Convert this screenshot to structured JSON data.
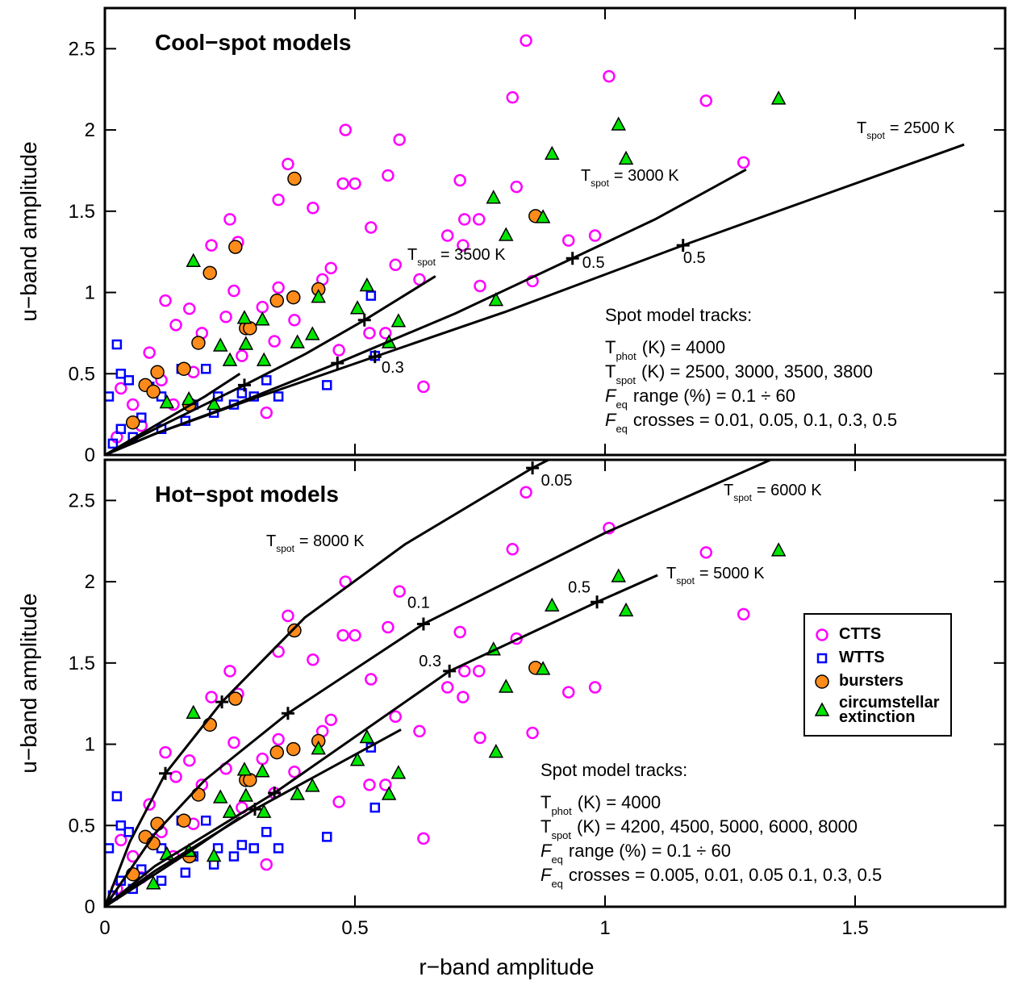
{
  "chart_data": [
    {
      "type": "scatter",
      "title": "Cool−spot models",
      "ylabel": "u−band amplitude",
      "xlim": [
        0,
        1.8
      ],
      "ylim": [
        0,
        2.75
      ],
      "xticks": [
        0,
        0.5,
        1,
        1.5
      ],
      "yticks": [
        0,
        0.5,
        1,
        1.5,
        2,
        2.5
      ],
      "show_xtick_labels": false,
      "series": [
        {
          "name": "CTTS",
          "color": "#ff00ff",
          "marker": "circle",
          "filled": false,
          "x": [
            0.842,
            1.008,
            0.815,
            1.202,
            1.277,
            0.481,
            0.589,
            0.366,
            0.476,
            0.5,
            0.566,
            0.71,
            0.823,
            0.347,
            0.416,
            0.719,
            0.748,
            0.685,
            0.716,
            0.532,
            0.25,
            0.266,
            0.213,
            0.927,
            0.98,
            0.75,
            0.855,
            0.581,
            0.629,
            0.121,
            0.169,
            0.258,
            0.315,
            0.347,
            0.379,
            0.435,
            0.452,
            0.142,
            0.194,
            0.274,
            0.339,
            0.242,
            0.529,
            0.561,
            0.468,
            0.637,
            0.089,
            0.032,
            0.056,
            0.113,
            0.323,
            0.177,
            0.137,
            0.073,
            0.024
          ],
          "y": [
            2.55,
            2.33,
            2.2,
            2.18,
            1.8,
            2.0,
            1.94,
            1.79,
            1.67,
            1.67,
            1.72,
            1.69,
            1.65,
            1.57,
            1.52,
            1.45,
            1.45,
            1.35,
            1.29,
            1.4,
            1.45,
            1.31,
            1.29,
            1.32,
            1.35,
            1.04,
            1.07,
            1.17,
            1.08,
            0.95,
            0.9,
            1.01,
            0.91,
            1.03,
            0.83,
            1.08,
            1.15,
            0.8,
            0.75,
            0.61,
            0.7,
            0.85,
            0.75,
            0.75,
            0.645,
            0.42,
            0.63,
            0.41,
            0.31,
            0.46,
            0.26,
            0.51,
            0.31,
            0.18,
            0.11
          ]
        },
        {
          "name": "WTTS",
          "color": "#0000ff",
          "marker": "square",
          "filled": false,
          "x": [
            0.532,
            0.54,
            0.444,
            0.024,
            0.032,
            0.008,
            0.048,
            0.089,
            0.153,
            0.202,
            0.113,
            0.177,
            0.226,
            0.274,
            0.323,
            0.347,
            0.218,
            0.073,
            0.032,
            0.113,
            0.258,
            0.298,
            0.016,
            0.056,
            0.161
          ],
          "y": [
            0.98,
            0.61,
            0.43,
            0.68,
            0.5,
            0.36,
            0.46,
            0.42,
            0.53,
            0.53,
            0.36,
            0.31,
            0.36,
            0.38,
            0.46,
            0.36,
            0.26,
            0.23,
            0.16,
            0.16,
            0.31,
            0.36,
            0.07,
            0.11,
            0.21
          ]
        },
        {
          "name": "bursters",
          "color": "#ff8c1a",
          "marker": "circle",
          "filled": true,
          "x": [
            0.379,
            0.861,
            0.261,
            0.21,
            0.282,
            0.29,
            0.344,
            0.377,
            0.427,
            0.187,
            0.105,
            0.158,
            0.081,
            0.097,
            0.056,
            0.169
          ],
          "y": [
            1.7,
            1.47,
            1.28,
            1.12,
            0.78,
            0.78,
            0.95,
            0.97,
            1.02,
            0.69,
            0.51,
            0.53,
            0.43,
            0.39,
            0.2,
            0.31
          ]
        },
        {
          "name": "circumstellar extinction",
          "color": "#00e600",
          "marker": "triangle",
          "filled": true,
          "x": [
            1.347,
            1.027,
            1.042,
            0.894,
            0.777,
            0.876,
            0.802,
            0.782,
            0.524,
            0.505,
            0.587,
            0.568,
            0.427,
            0.415,
            0.385,
            0.315,
            0.279,
            0.282,
            0.318,
            0.177,
            0.231,
            0.25,
            0.168,
            0.124,
            0.218
          ],
          "y": [
            2.19,
            2.03,
            1.82,
            1.85,
            1.58,
            1.46,
            1.35,
            0.95,
            1.04,
            0.9,
            0.82,
            0.69,
            0.97,
            0.74,
            0.69,
            0.83,
            0.84,
            0.68,
            0.58,
            1.19,
            0.67,
            0.58,
            0.34,
            0.32,
            0.31
          ]
        }
      ],
      "tracks": [
        {
          "label": {
            "main": "T",
            "sub": "spot",
            "rest": "= 2500 K"
          },
          "x": [
            0,
            0.1,
            0.3,
            0.54,
            0.8,
            1.156,
            1.4,
            1.718
          ],
          "y": [
            0,
            0.13,
            0.35,
            0.605,
            0.88,
            1.29,
            1.56,
            1.91
          ],
          "crosses": {
            "x": [
              0.54,
              1.156
            ],
            "y": [
              0.605,
              1.29
            ],
            "labels": [
              "0.3",
              "0.5"
            ]
          }
        },
        {
          "label": {
            "main": "T",
            "sub": "spot",
            "rest": "= 3000 K"
          },
          "x": [
            0,
            0.1,
            0.25,
            0.465,
            0.7,
            0.935,
            1.1,
            1.282
          ],
          "y": [
            0,
            0.13,
            0.3,
            0.565,
            0.87,
            1.21,
            1.45,
            1.756
          ],
          "crosses": {
            "x": [
              0.465,
              0.935
            ],
            "y": [
              0.565,
              1.21
            ],
            "labels": [
              null,
              "0.5"
            ]
          }
        },
        {
          "label": {
            "main": "T",
            "sub": "spot",
            "rest": "= 3500 K"
          },
          "x": [
            0,
            0.1,
            0.279,
            0.4,
            0.519,
            0.661
          ],
          "y": [
            0,
            0.16,
            0.43,
            0.62,
            0.83,
            1.1
          ],
          "crosses": {
            "x": [
              0.279,
              0.519
            ],
            "y": [
              0.43,
              0.83
            ],
            "labels": [
              null,
              null
            ]
          }
        },
        {
          "x": [
            0,
            0.1,
            0.2,
            0.27
          ],
          "y": [
            0,
            0.18,
            0.36,
            0.5
          ]
        }
      ],
      "notes": [
        "Spot model tracks:",
        {
          "main": "T",
          "sub": "phot",
          "rest": "(K) = 4000"
        },
        {
          "main": "T",
          "sub": "spot",
          "rest": "(K) = 2500, 3000, 3500, 3800"
        },
        {
          "main": "F",
          "sub": "eq",
          "rest": "range (%) = 0.1 ÷ 60",
          "italic": true
        },
        {
          "main": "F",
          "sub": "eq",
          "rest": "crosses = 0.01, 0.05, 0.1, 0.3, 0.5",
          "italic": true
        }
      ]
    },
    {
      "type": "scatter",
      "title": "Hot−spot models",
      "ylabel": "u−band amplitude",
      "xlabel": "r−band amplitude",
      "xlim": [
        0,
        1.8
      ],
      "ylim": [
        0,
        2.75
      ],
      "xticks": [
        0,
        0.5,
        1,
        1.5
      ],
      "yticks": [
        0,
        0.5,
        1,
        1.5,
        2,
        2.5
      ],
      "show_xtick_labels": true,
      "legend": "right",
      "series": [
        {
          "name": "CTTS",
          "color": "#ff00ff",
          "marker": "circle",
          "filled": false,
          "x": [
            0.842,
            1.008,
            0.815,
            1.202,
            1.277,
            0.481,
            0.589,
            0.366,
            0.476,
            0.5,
            0.566,
            0.71,
            0.823,
            0.347,
            0.416,
            0.719,
            0.748,
            0.685,
            0.716,
            0.532,
            0.25,
            0.266,
            0.213,
            0.927,
            0.98,
            0.75,
            0.855,
            0.581,
            0.629,
            0.121,
            0.169,
            0.258,
            0.315,
            0.347,
            0.379,
            0.435,
            0.452,
            0.142,
            0.194,
            0.274,
            0.339,
            0.242,
            0.529,
            0.561,
            0.468,
            0.637,
            0.089,
            0.032,
            0.056,
            0.113,
            0.323,
            0.177,
            0.137,
            0.073,
            0.024
          ],
          "y": [
            2.55,
            2.33,
            2.2,
            2.18,
            1.8,
            2.0,
            1.94,
            1.79,
            1.67,
            1.67,
            1.72,
            1.69,
            1.65,
            1.57,
            1.52,
            1.45,
            1.45,
            1.35,
            1.29,
            1.4,
            1.45,
            1.31,
            1.29,
            1.32,
            1.35,
            1.04,
            1.07,
            1.17,
            1.08,
            0.95,
            0.9,
            1.01,
            0.91,
            1.03,
            0.83,
            1.08,
            1.15,
            0.8,
            0.75,
            0.61,
            0.7,
            0.85,
            0.75,
            0.75,
            0.645,
            0.42,
            0.63,
            0.41,
            0.31,
            0.46,
            0.26,
            0.51,
            0.31,
            0.18,
            0.11
          ]
        },
        {
          "name": "WTTS",
          "color": "#0000ff",
          "marker": "square",
          "filled": false,
          "x": [
            0.532,
            0.54,
            0.444,
            0.024,
            0.032,
            0.008,
            0.048,
            0.089,
            0.153,
            0.202,
            0.113,
            0.177,
            0.226,
            0.274,
            0.323,
            0.347,
            0.218,
            0.073,
            0.032,
            0.113,
            0.258,
            0.298,
            0.016,
            0.056,
            0.161
          ],
          "y": [
            0.98,
            0.61,
            0.43,
            0.68,
            0.5,
            0.36,
            0.46,
            0.42,
            0.53,
            0.53,
            0.36,
            0.31,
            0.36,
            0.38,
            0.46,
            0.36,
            0.26,
            0.23,
            0.16,
            0.16,
            0.31,
            0.36,
            0.07,
            0.11,
            0.21
          ]
        },
        {
          "name": "bursters",
          "color": "#ff8c1a",
          "marker": "circle",
          "filled": true,
          "x": [
            0.379,
            0.861,
            0.261,
            0.21,
            0.282,
            0.29,
            0.344,
            0.377,
            0.427,
            0.187,
            0.105,
            0.158,
            0.081,
            0.097,
            0.056,
            0.169
          ],
          "y": [
            1.7,
            1.47,
            1.28,
            1.12,
            0.78,
            0.78,
            0.95,
            0.97,
            1.02,
            0.69,
            0.51,
            0.53,
            0.43,
            0.39,
            0.2,
            0.31
          ]
        },
        {
          "name": "circumstellar extinction",
          "color": "#00e600",
          "marker": "triangle",
          "filled": true,
          "x": [
            1.347,
            1.027,
            1.042,
            0.894,
            0.777,
            0.876,
            0.802,
            0.782,
            0.524,
            0.505,
            0.587,
            0.568,
            0.427,
            0.415,
            0.385,
            0.315,
            0.279,
            0.282,
            0.318,
            0.177,
            0.231,
            0.25,
            0.168,
            0.124,
            0.218,
            0.097
          ],
          "y": [
            2.19,
            2.03,
            1.82,
            1.85,
            1.58,
            1.46,
            1.35,
            0.95,
            1.04,
            0.9,
            0.82,
            0.69,
            0.97,
            0.74,
            0.69,
            0.83,
            0.84,
            0.68,
            0.58,
            1.19,
            0.67,
            0.58,
            0.34,
            0.32,
            0.31,
            0.14
          ]
        }
      ],
      "tracks": [
        {
          "label": {
            "main": "T",
            "sub": "spot",
            "rest": "= 8000 K"
          },
          "x": [
            0,
            0.05,
            0.121,
            0.234,
            0.4,
            0.6,
            0.855,
            0.887
          ],
          "y": [
            0,
            0.4,
            0.82,
            1.26,
            1.78,
            2.23,
            2.7,
            2.75
          ],
          "crosses": {
            "x": [
              0.121,
              0.234,
              0.855
            ],
            "y": [
              0.82,
              1.26,
              2.7
            ],
            "labels": [
              null,
              null,
              "0.05"
            ]
          }
        },
        {
          "label": {
            "main": "T",
            "sub": "spot",
            "rest": "= 6000 K"
          },
          "x": [
            0,
            0.1,
            0.2,
            0.366,
            0.637,
            1.0,
            1.331
          ],
          "y": [
            0,
            0.45,
            0.78,
            1.19,
            1.74,
            2.3,
            2.75
          ],
          "crosses": {
            "x": [
              0.366,
              0.637
            ],
            "y": [
              1.19,
              1.74
            ],
            "labels": [
              null,
              "0.1"
            ]
          }
        },
        {
          "label": {
            "main": "T",
            "sub": "spot",
            "rest": "= 5000 K"
          },
          "x": [
            0,
            0.1,
            0.339,
            0.689,
            0.984,
            1.105
          ],
          "y": [
            0,
            0.25,
            0.7,
            1.45,
            1.875,
            2.04
          ],
          "crosses": {
            "x": [
              0.339,
              0.689,
              0.984
            ],
            "y": [
              0.7,
              1.45,
              1.875
            ],
            "labels": [
              null,
              "0.3",
              "0.5"
            ]
          }
        },
        {
          "x": [
            0,
            0.1,
            0.3,
            0.592
          ],
          "y": [
            0,
            0.22,
            0.6,
            1.09
          ],
          "crosses": {
            "x": [
              0.3
            ],
            "y": [
              0.6
            ],
            "labels": [
              null
            ]
          }
        },
        {
          "x": [
            0,
            0.15,
            0.27
          ],
          "y": [
            0,
            0.3,
            0.55
          ]
        }
      ],
      "notes": [
        "Spot model tracks:",
        {
          "main": "T",
          "sub": "phot",
          "rest": "(K) = 4000"
        },
        {
          "main": "T",
          "sub": "spot",
          "rest": "(K) = 4200, 4500, 5000, 6000, 8000"
        },
        {
          "main": "F",
          "sub": "eq",
          "rest": "range (%) = 0.1 ÷ 60",
          "italic": true
        },
        {
          "main": "F",
          "sub": "eq",
          "rest": "crosses = 0.005, 0.01, 0.05 0.1, 0.3, 0.5",
          "italic": true
        }
      ]
    }
  ]
}
